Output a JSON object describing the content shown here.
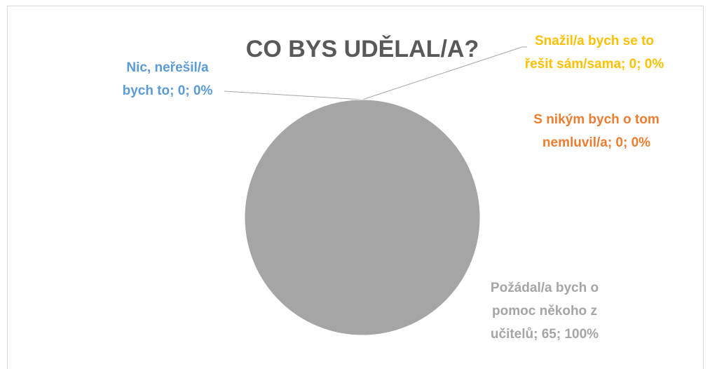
{
  "chart_data": {
    "type": "pie",
    "title": "CO BYS UDĚLAL/A?",
    "values": [
      0,
      0,
      0,
      65
    ],
    "value_labels": [
      "Nic, neřešil/a bych to; 0; 0%",
      "Snažil/a bych se to řešit sám/sama; 0; 0%",
      "S nikým bych o tom nemluvil/a; 0; 0%",
      "Požádal/a bych o pomoc někoho z učitelů; 65; 100%"
    ],
    "colors": [
      "#5b9bd5",
      "#ffc000",
      "#ed7d31",
      "#a5a5a5"
    ]
  }
}
